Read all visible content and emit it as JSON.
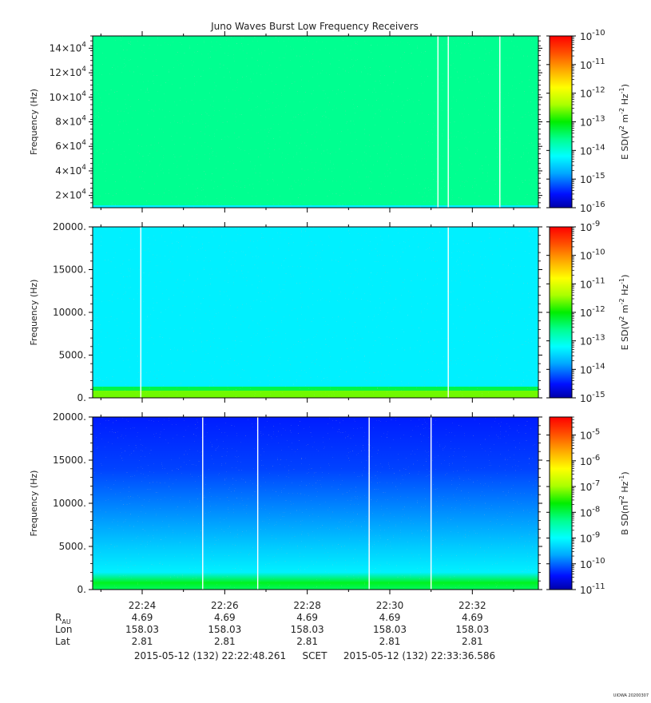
{
  "figure": {
    "title": "Juno Waves Burst Low Frequency Receivers",
    "watermark": "UIOWA 20200307"
  },
  "chart_data": [
    {
      "type": "heatmap",
      "panel": "top",
      "ylabel": "Frequency (Hz)",
      "ylim": [
        10000,
        150000
      ],
      "yticks": [
        20000,
        40000,
        60000,
        80000,
        100000,
        120000,
        140000
      ],
      "yticklabels": [
        {
          "base": "2×10",
          "exp": "4"
        },
        {
          "base": "4×10",
          "exp": "4"
        },
        {
          "base": "6×10",
          "exp": "4"
        },
        {
          "base": "8×10",
          "exp": "4"
        },
        {
          "base": "10×10",
          "exp": "4"
        },
        {
          "base": "12×10",
          "exp": "4"
        },
        {
          "base": "14×10",
          "exp": "4"
        }
      ],
      "colorbar": {
        "label_base": "E SD(V",
        "label_mid": " m",
        "label_mid2": " Hz",
        "label_sup1": "2",
        "label_sup2": "-2",
        "label_sup3": "-1",
        "label_close": ")",
        "log_min": -16,
        "log_max": -10,
        "ticks": [
          -16,
          -15,
          -14,
          -13,
          -12,
          -11,
          -10
        ]
      },
      "background_level": -13.6,
      "low_band_level": -14.3,
      "gap_times": [
        "22:31:10",
        "22:31:25",
        "22:32:40"
      ]
    },
    {
      "type": "heatmap",
      "panel": "middle",
      "ylabel": "Frequency (Hz)",
      "ylim": [
        0,
        20000
      ],
      "yticks": [
        0,
        5000,
        10000,
        15000,
        20000
      ],
      "yticklabels": [
        "0.",
        "5000.",
        "10000.",
        "15000.",
        "20000."
      ],
      "colorbar": {
        "label_base": "E SD(V",
        "label_mid": " m",
        "label_mid2": " Hz",
        "label_sup1": "2",
        "label_sup2": "-2",
        "label_sup3": "-1",
        "label_close": ")",
        "log_min": -15,
        "log_max": -9,
        "ticks": [
          -15,
          -14,
          -13,
          -12,
          -11,
          -10,
          -9
        ]
      },
      "background_level": -13.3,
      "low_band_level": -11.6,
      "gap_times": [
        "22:23:58",
        "22:31:25"
      ]
    },
    {
      "type": "heatmap",
      "panel": "bottom",
      "ylabel": "Frequency (Hz)",
      "ylim": [
        0,
        20000
      ],
      "yticks": [
        0,
        5000,
        10000,
        15000,
        20000
      ],
      "yticklabels": [
        "0.",
        "5000.",
        "10000.",
        "15000.",
        "20000."
      ],
      "colorbar": {
        "label_base": "B SD(nT",
        "label_mid": " Hz",
        "label_mid2": "",
        "label_sup1": "2",
        "label_sup2": "-1",
        "label_sup3": "",
        "label_close": ")",
        "log_min": -11,
        "log_max": -4.3,
        "ticks": [
          -11,
          -10,
          -9,
          -8,
          -7,
          -6,
          -5
        ]
      },
      "background_level": -10.4,
      "low_band_level": -8.1,
      "gap_times": [
        "22:25:28",
        "22:26:48",
        "22:29:30",
        "22:31:00"
      ]
    }
  ],
  "time_axis": {
    "start": "22:22:48",
    "end": "22:33:36",
    "major_ticks": [
      "22:24",
      "22:26",
      "22:28",
      "22:30",
      "22:32"
    ],
    "minor_ticks": [
      "22:23",
      "22:25",
      "22:27",
      "22:29",
      "22:31",
      "22:33"
    ]
  },
  "ephemeris": {
    "rows": [
      {
        "label": "R",
        "sub": "AU",
        "values": [
          "4.69",
          "4.69",
          "4.69",
          "4.69",
          "4.69"
        ]
      },
      {
        "label": "Lon",
        "sub": "",
        "values": [
          "158.03",
          "158.03",
          "158.03",
          "158.03",
          "158.03"
        ]
      },
      {
        "label": "Lat",
        "sub": "",
        "values": [
          "2.81",
          "2.81",
          "2.81",
          "2.81",
          "2.81"
        ]
      }
    ]
  },
  "range": {
    "start": "2015-05-12 (132) 22:22:48.261",
    "label": "SCET",
    "end": "2015-05-12 (132) 22:33:36.586"
  }
}
